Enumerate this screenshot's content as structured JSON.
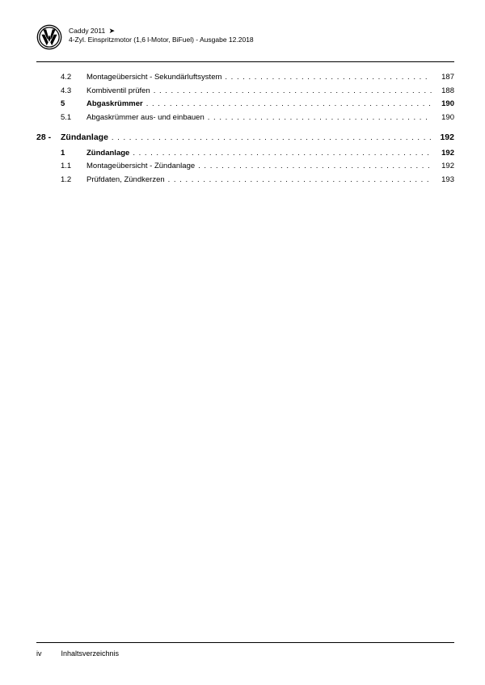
{
  "header": {
    "model": "Caddy 2011",
    "arrow": "➤",
    "subtitle": "4-Zyl. Einspritzmotor (1,6 l-Motor, BiFuel) - Ausgabe 12.2018"
  },
  "toc": {
    "group1": [
      {
        "num": "4.2",
        "label": "Montageübersicht - Sekundärluftsystem",
        "page": "187",
        "bold": false
      },
      {
        "num": "4.3",
        "label": "Kombiventil prüfen",
        "page": "188",
        "bold": false
      },
      {
        "num": "5",
        "label": "Abgaskrümmer",
        "page": "190",
        "bold": true
      },
      {
        "num": "5.1",
        "label": "Abgaskrümmer aus- und einbauen",
        "page": "190",
        "bold": false
      }
    ],
    "chapter": {
      "num": "28 -",
      "label": "Zündanlage",
      "page": "192"
    },
    "group2": [
      {
        "num": "1",
        "label": "Zündanlage",
        "page": "192",
        "bold": true
      },
      {
        "num": "1.1",
        "label": "Montageübersicht - Zündanlage",
        "page": "192",
        "bold": false
      },
      {
        "num": "1.2",
        "label": "Prüfdaten, Zündkerzen",
        "page": "193",
        "bold": false
      }
    ]
  },
  "footer": {
    "pageNum": "iv",
    "label": "Inhaltsverzeichnis"
  }
}
